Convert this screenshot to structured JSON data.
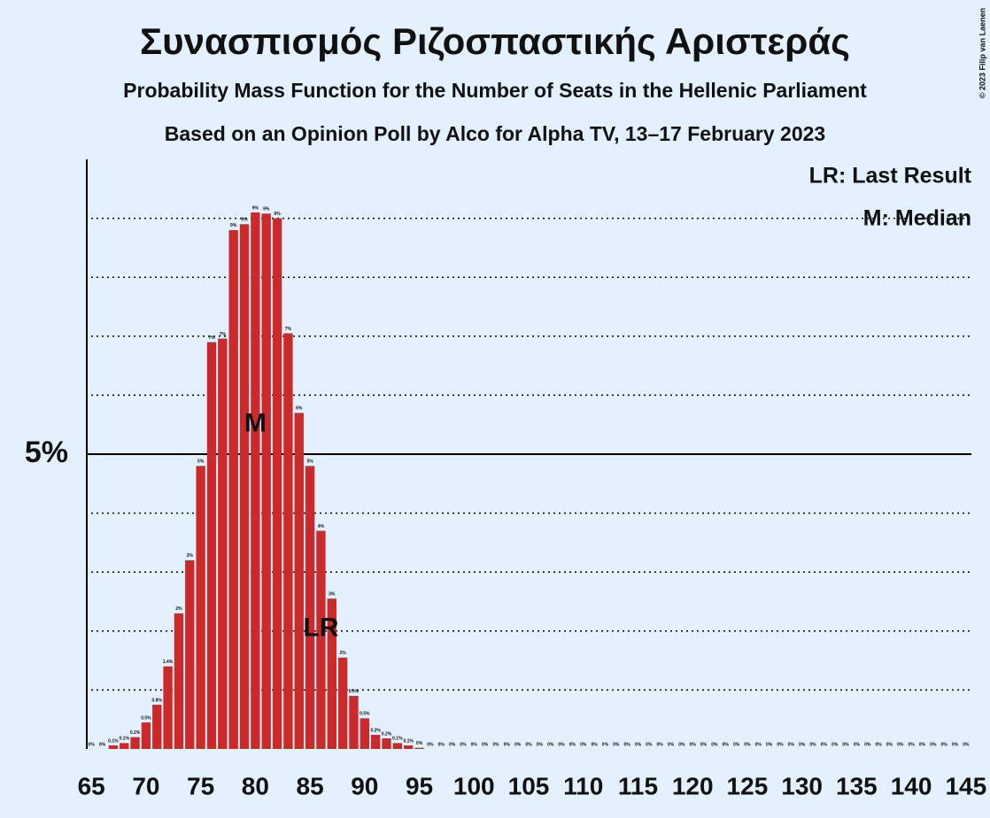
{
  "chart_data": {
    "type": "bar",
    "title": "Συνασπισμός Ριζοσπαστικής Αριστεράς",
    "subtitle": "Probability Mass Function for the Number of Seats in the Hellenic Parliament",
    "subtitle2": "Based on an Opinion Poll by Alco for Alpha TV, 13–17 February 2023",
    "copyright": "© 2023 Filip van Laenen",
    "legend": [
      "LR: Last Result",
      "M: Median"
    ],
    "color": "#cc2a2a",
    "x": [
      65,
      66,
      67,
      68,
      69,
      70,
      71,
      72,
      73,
      74,
      75,
      76,
      77,
      78,
      79,
      80,
      81,
      82,
      83,
      84,
      85,
      86,
      87,
      88,
      89,
      90,
      91,
      92,
      93,
      94,
      95,
      96,
      97,
      98,
      99,
      100,
      101,
      102,
      103,
      104,
      105,
      106,
      107,
      108,
      109,
      110,
      111,
      112,
      113,
      114,
      115,
      116,
      117,
      118,
      119,
      120,
      121,
      122,
      123,
      124,
      125,
      126,
      127,
      128,
      129,
      130,
      131,
      132,
      133,
      134,
      135,
      136,
      137,
      138,
      139,
      140,
      141,
      142,
      143,
      144,
      145
    ],
    "values": [
      0,
      0,
      0.06,
      0.1,
      0.2,
      0.45,
      0.75,
      1.4,
      2.3,
      3.2,
      4.8,
      6.9,
      6.96,
      8.8,
      8.9,
      9.1,
      9.08,
      9.0,
      7.05,
      5.7,
      4.8,
      3.7,
      2.55,
      1.55,
      0.9,
      0.52,
      0.24,
      0.18,
      0.1,
      0.06,
      0.02,
      0,
      0,
      0,
      0,
      0,
      0,
      0,
      0,
      0,
      0,
      0,
      0,
      0,
      0,
      0,
      0,
      0,
      0,
      0,
      0,
      0,
      0,
      0,
      0,
      0,
      0,
      0,
      0,
      0,
      0,
      0,
      0,
      0,
      0,
      0,
      0,
      0,
      0,
      0,
      0,
      0,
      0,
      0,
      0,
      0,
      0,
      0,
      0,
      0,
      0
    ],
    "value_labels": [
      "0%",
      "0%",
      "0.1%",
      "0.1%",
      "0.2%",
      "0.5%",
      "0.8%",
      "1.4%",
      "2%",
      "3%",
      "5%",
      "7%",
      "7%",
      "9%",
      "9%",
      "9%",
      "9%",
      "9%",
      "7%",
      "6%",
      "5%",
      "4%",
      "3%",
      "2%",
      "0.9%",
      "0.5%",
      "0.2%",
      "0.2%",
      "0.1%",
      "0.1%",
      "0%",
      "0%",
      "0%",
      "0%",
      "0%",
      "0%",
      "0%",
      "0%",
      "0%",
      "0%",
      "0%",
      "0%",
      "0%",
      "0%",
      "0%",
      "0%",
      "0%",
      "0%",
      "0%",
      "0%",
      "0%",
      "0%",
      "0%",
      "0%",
      "0%",
      "0%",
      "0%",
      "0%",
      "0%",
      "0%",
      "0%",
      "0%",
      "0%",
      "0%",
      "0%",
      "0%",
      "0%",
      "0%",
      "0%",
      "0%",
      "0%",
      "0%",
      "0%",
      "0%",
      "0%",
      "0%",
      "0%",
      "0%",
      "0%",
      "0%",
      "0%"
    ],
    "annotations": [
      {
        "x": 80,
        "text": "M"
      },
      {
        "x": 86,
        "text": "LR"
      }
    ],
    "xlim": [
      64.5,
      145.5
    ],
    "xticks": [
      65,
      70,
      75,
      80,
      85,
      90,
      95,
      100,
      105,
      110,
      115,
      120,
      125,
      130,
      135,
      140,
      145
    ],
    "ylim": [
      0,
      10
    ],
    "yticks": [
      {
        "value": 5,
        "label": "5%"
      }
    ],
    "gridlines": [
      1,
      2,
      3,
      4,
      6,
      7,
      8,
      9
    ]
  }
}
